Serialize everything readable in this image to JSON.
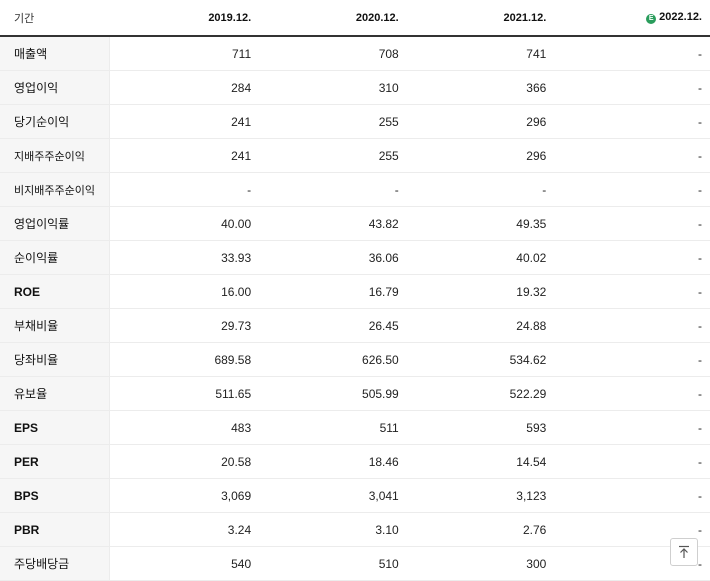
{
  "header": {
    "label": "기간",
    "periods": [
      "2019.12.",
      "2020.12.",
      "2021.12.",
      "2022.12."
    ],
    "estimate_icon_text": "E",
    "estimate_icon_color": "#2a9d5c"
  },
  "rows": [
    {
      "label": "매출액",
      "values": [
        "711",
        "708",
        "741",
        "-"
      ]
    },
    {
      "label": "영업이익",
      "values": [
        "284",
        "310",
        "366",
        "-"
      ]
    },
    {
      "label": "당기순이익",
      "values": [
        "241",
        "255",
        "296",
        "-"
      ]
    },
    {
      "label": "지배주주순이익",
      "values": [
        "241",
        "255",
        "296",
        "-"
      ]
    },
    {
      "label": "비지배주주순이익",
      "values": [
        "-",
        "-",
        "-",
        "-"
      ]
    },
    {
      "label": "영업이익률",
      "values": [
        "40.00",
        "43.82",
        "49.35",
        "-"
      ]
    },
    {
      "label": "순이익률",
      "values": [
        "33.93",
        "36.06",
        "40.02",
        "-"
      ]
    },
    {
      "label": "ROE",
      "values": [
        "16.00",
        "16.79",
        "19.32",
        "-"
      ]
    },
    {
      "label": "부채비율",
      "values": [
        "29.73",
        "26.45",
        "24.88",
        "-"
      ]
    },
    {
      "label": "당좌비율",
      "values": [
        "689.58",
        "626.50",
        "534.62",
        "-"
      ]
    },
    {
      "label": "유보율",
      "values": [
        "511.65",
        "505.99",
        "522.29",
        "-"
      ]
    },
    {
      "label": "EPS",
      "values": [
        "483",
        "511",
        "593",
        "-"
      ]
    },
    {
      "label": "PER",
      "values": [
        "20.58",
        "18.46",
        "14.54",
        "-"
      ]
    },
    {
      "label": "BPS",
      "values": [
        "3,069",
        "3,041",
        "3,123",
        "-"
      ]
    },
    {
      "label": "PBR",
      "values": [
        "3.24",
        "3.10",
        "2.76",
        "-"
      ]
    },
    {
      "label": "주당배당금",
      "values": [
        "540",
        "510",
        "300",
        "-"
      ]
    }
  ],
  "scroll_top_button": {
    "icon": "arrow-up-icon"
  }
}
